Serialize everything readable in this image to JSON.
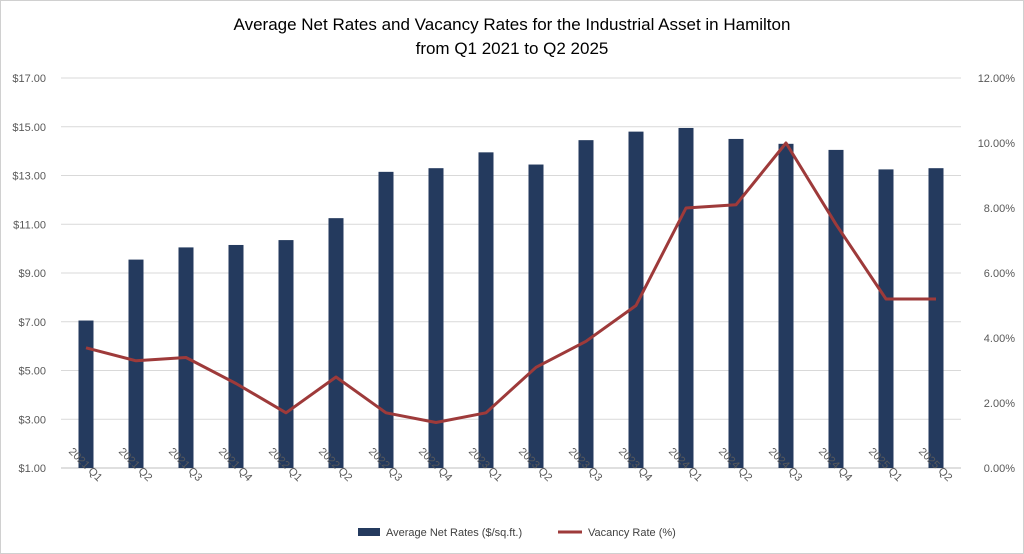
{
  "chart_data": {
    "type": "bar",
    "title_line1": "Average Net Rates and Vacancy Rates for the Industrial Asset in Hamilton",
    "title_line2": "from Q1 2021 to Q2 2025",
    "categories": [
      "2021 Q1",
      "2021 Q2",
      "2021 Q3",
      "2021 Q4",
      "2022 Q1",
      "2022 Q2",
      "2022 Q3",
      "2022 Q4",
      "2023 Q1",
      "2023 Q2",
      "2023 Q3",
      "2023 Q4",
      "2024 Q1",
      "2024 Q2",
      "2024 Q3",
      "2024 Q4",
      "2025 Q1",
      "2025 Q2"
    ],
    "series": [
      {
        "name": "Average Net Rates ($/sq.ft.)",
        "type": "bar",
        "axis": "left",
        "color": "#243a5e",
        "values": [
          7.05,
          9.55,
          10.05,
          10.15,
          10.35,
          11.25,
          13.15,
          13.3,
          13.95,
          13.45,
          14.45,
          14.8,
          14.95,
          14.5,
          14.3,
          14.05,
          13.25,
          13.3
        ]
      },
      {
        "name": "Vacancy Rate (%)",
        "type": "line",
        "axis": "right",
        "color": "#9e3a3a",
        "values": [
          3.7,
          3.3,
          3.4,
          2.6,
          1.7,
          2.8,
          1.7,
          1.4,
          1.7,
          3.1,
          3.9,
          5.0,
          8.0,
          8.1,
          10.0,
          7.5,
          5.2,
          5.2
        ]
      }
    ],
    "left_axis": {
      "min": 1,
      "max": 17,
      "ticks": [
        1,
        3,
        5,
        7,
        9,
        11,
        13,
        15,
        17
      ],
      "tick_labels": [
        "$1.00",
        "$3.00",
        "$5.00",
        "$7.00",
        "$9.00",
        "$11.00",
        "$13.00",
        "$15.00",
        "$17.00"
      ]
    },
    "right_axis": {
      "min": 0,
      "max": 12,
      "ticks": [
        0,
        2,
        4,
        6,
        8,
        10,
        12
      ],
      "tick_labels": [
        "0.00%",
        "2.00%",
        "4.00%",
        "6.00%",
        "8.00%",
        "10.00%",
        "12.00%"
      ]
    },
    "grid": true,
    "legend": "bottom"
  }
}
